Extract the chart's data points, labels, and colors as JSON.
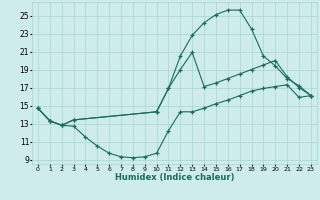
{
  "xlabel": "Humidex (Indice chaleur)",
  "bg_color": "#ceecea",
  "grid_color": "#a8d5d0",
  "line_color": "#1a6b60",
  "xlim": [
    -0.5,
    23.5
  ],
  "ylim": [
    8.5,
    26.5
  ],
  "xticks": [
    0,
    1,
    2,
    3,
    4,
    5,
    6,
    7,
    8,
    9,
    10,
    11,
    12,
    13,
    14,
    15,
    16,
    17,
    18,
    19,
    20,
    21,
    22,
    23
  ],
  "yticks": [
    9,
    11,
    13,
    15,
    17,
    19,
    21,
    23,
    25
  ],
  "line1_x": [
    0,
    1,
    2,
    3,
    4,
    5,
    6,
    7,
    8,
    9,
    10,
    11,
    12,
    13,
    14,
    15,
    16,
    17,
    18,
    19,
    20,
    21,
    22,
    23
  ],
  "line1_y": [
    14.7,
    13.3,
    12.8,
    12.7,
    11.5,
    10.5,
    9.7,
    9.3,
    9.2,
    9.3,
    9.7,
    12.2,
    14.3,
    14.3,
    14.7,
    15.2,
    15.6,
    16.1,
    16.6,
    16.9,
    17.1,
    17.3,
    15.9,
    16.1
  ],
  "line2_x": [
    0,
    1,
    2,
    3,
    10,
    11,
    12,
    13,
    14,
    15,
    16,
    17,
    18,
    19,
    20,
    21,
    22,
    23
  ],
  "line2_y": [
    14.7,
    13.3,
    12.8,
    13.4,
    14.3,
    16.9,
    19.0,
    20.9,
    17.1,
    17.5,
    18.0,
    18.5,
    19.0,
    19.5,
    20.0,
    18.2,
    17.0,
    16.1
  ],
  "line3_x": [
    0,
    1,
    2,
    3,
    10,
    11,
    12,
    13,
    14,
    15,
    16,
    17,
    18,
    19,
    20,
    21,
    22,
    23
  ],
  "line3_y": [
    14.7,
    13.3,
    12.8,
    13.4,
    14.3,
    16.9,
    20.5,
    22.8,
    24.2,
    25.1,
    25.6,
    25.6,
    23.5,
    20.5,
    19.4,
    18.0,
    17.2,
    16.1
  ]
}
